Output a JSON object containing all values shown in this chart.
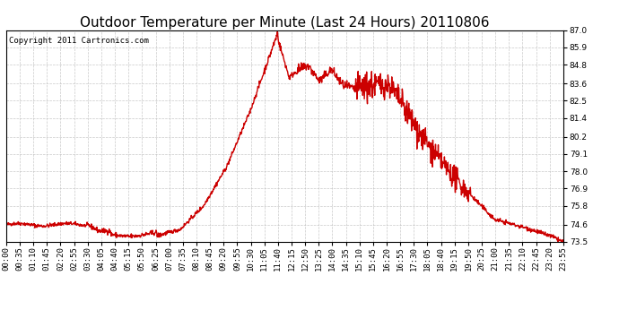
{
  "title": "Outdoor Temperature per Minute (Last 24 Hours) 20110806",
  "copyright_text": "Copyright 2011 Cartronics.com",
  "line_color": "#cc0000",
  "bg_color": "#ffffff",
  "plot_bg_color": "#ffffff",
  "grid_color": "#bbbbbb",
  "ylim": [
    73.5,
    87.0
  ],
  "yticks": [
    73.5,
    74.6,
    75.8,
    76.9,
    78.0,
    79.1,
    80.2,
    81.4,
    82.5,
    83.6,
    84.8,
    85.9,
    87.0
  ],
  "xtick_labels": [
    "00:00",
    "00:35",
    "01:10",
    "01:45",
    "02:20",
    "02:55",
    "03:30",
    "04:05",
    "04:40",
    "05:15",
    "05:50",
    "06:25",
    "07:00",
    "07:35",
    "08:10",
    "08:45",
    "09:20",
    "09:55",
    "10:30",
    "11:05",
    "11:40",
    "12:15",
    "12:50",
    "13:25",
    "14:00",
    "14:35",
    "15:10",
    "15:45",
    "16:20",
    "16:55",
    "17:30",
    "18:05",
    "18:40",
    "19:15",
    "19:50",
    "20:25",
    "21:00",
    "21:35",
    "22:10",
    "22:45",
    "23:20",
    "23:55"
  ],
  "title_fontsize": 11,
  "copyright_fontsize": 6.5,
  "tick_fontsize": 6.5,
  "line_width": 1.0
}
